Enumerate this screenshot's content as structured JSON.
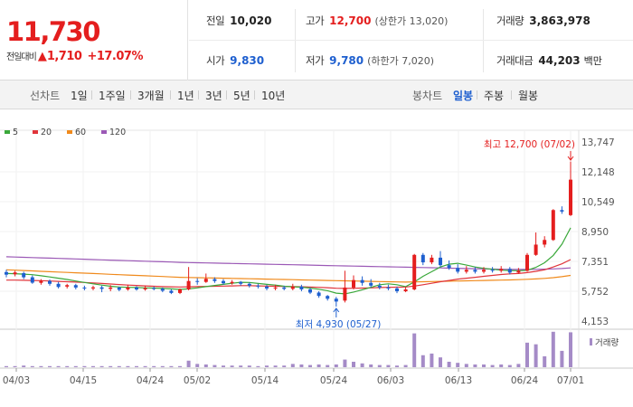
{
  "quote": {
    "price": "11,730",
    "change_label": "전일대비",
    "change_arrow": "▲",
    "change_amount": "1,710",
    "change_pct": "+17.07%",
    "prev_close": {
      "label": "전일",
      "value": "10,020"
    },
    "high": {
      "label": "고가",
      "value": "12,700",
      "note": "(상한가 13,020)"
    },
    "volume": {
      "label": "거래량",
      "value": "3,863,978"
    },
    "open": {
      "label": "시가",
      "value": "9,830"
    },
    "low": {
      "label": "저가",
      "value": "9,780",
      "note": "(하한가 7,020)"
    },
    "trade_value": {
      "label": "거래대금",
      "value": "44,203",
      "unit": "백만"
    }
  },
  "tabs": {
    "line_label": "선차트",
    "line_tabs": [
      "1일",
      "1주일",
      "3개월",
      "1년",
      "3년",
      "5년",
      "10년"
    ],
    "candle_label": "봉차트",
    "candle_tabs": [
      "일봉",
      "주봉",
      "월봉"
    ],
    "active_candle": "일봉"
  },
  "colors": {
    "up": "#e41e1e",
    "down": "#1e5fcf",
    "accent": "#1e5fcf"
  },
  "chart_data": {
    "type": "candlestick",
    "legend": [
      {
        "name": "5",
        "color": "#3aa83a"
      },
      {
        "name": "20",
        "color": "#e0343a"
      },
      {
        "name": "60",
        "color": "#f08a1c"
      },
      {
        "name": "120",
        "color": "#9b59b6"
      }
    ],
    "y_ticks": [
      "13,747",
      "12,148",
      "10,549",
      "8,950",
      "7,351",
      "5,752",
      "4,153"
    ],
    "ylim": [
      4153,
      13747
    ],
    "x_ticks": [
      "04/03",
      "04/15",
      "04/24",
      "05/02",
      "05/14",
      "05/24",
      "06/03",
      "06/13",
      "06/24",
      "07/01"
    ],
    "high_annotation": "최고 12,700 (07/02)",
    "low_annotation": "최저 4,930 (05/27)",
    "volume_label": "거래량",
    "candles": [
      {
        "o": 6780,
        "c": 6640,
        "h": 6900,
        "l": 6500
      },
      {
        "o": 6660,
        "c": 6760,
        "h": 6850,
        "l": 6550
      },
      {
        "o": 6720,
        "c": 6500,
        "h": 6800,
        "l": 6400
      },
      {
        "o": 6500,
        "c": 6210,
        "h": 6600,
        "l": 6150
      },
      {
        "o": 6200,
        "c": 6310,
        "h": 6400,
        "l": 6100
      },
      {
        "o": 6300,
        "c": 6150,
        "h": 6380,
        "l": 6050
      },
      {
        "o": 6150,
        "c": 5980,
        "h": 6250,
        "l": 5900
      },
      {
        "o": 6000,
        "c": 6080,
        "h": 6150,
        "l": 5900
      },
      {
        "o": 6080,
        "c": 5950,
        "h": 6150,
        "l": 5850
      },
      {
        "o": 5950,
        "c": 5900,
        "h": 6050,
        "l": 5800
      },
      {
        "o": 5900,
        "c": 5960,
        "h": 6050,
        "l": 5800
      },
      {
        "o": 5960,
        "c": 5880,
        "h": 6050,
        "l": 5700
      },
      {
        "o": 5880,
        "c": 5950,
        "h": 6080,
        "l": 5750
      },
      {
        "o": 5950,
        "c": 5830,
        "h": 6000,
        "l": 5750
      },
      {
        "o": 5850,
        "c": 5950,
        "h": 6100,
        "l": 5780
      },
      {
        "o": 5950,
        "c": 5850,
        "h": 6020,
        "l": 5780
      },
      {
        "o": 5850,
        "c": 5920,
        "h": 6050,
        "l": 5780
      },
      {
        "o": 5920,
        "c": 5880,
        "h": 6000,
        "l": 5800
      },
      {
        "o": 5880,
        "c": 5780,
        "h": 5950,
        "l": 5700
      },
      {
        "o": 5780,
        "c": 5660,
        "h": 5860,
        "l": 5600
      },
      {
        "o": 5660,
        "c": 5850,
        "h": 5900,
        "l": 5600
      },
      {
        "o": 5850,
        "c": 6300,
        "h": 7050,
        "l": 5800
      },
      {
        "o": 6300,
        "c": 6250,
        "h": 6450,
        "l": 6100
      },
      {
        "o": 6250,
        "c": 6420,
        "h": 6700,
        "l": 6200
      },
      {
        "o": 6400,
        "c": 6300,
        "h": 6500,
        "l": 6200
      },
      {
        "o": 6300,
        "c": 6180,
        "h": 6400,
        "l": 6100
      },
      {
        "o": 6180,
        "c": 6250,
        "h": 6350,
        "l": 6100
      },
      {
        "o": 6250,
        "c": 6150,
        "h": 6300,
        "l": 6050
      },
      {
        "o": 6150,
        "c": 6050,
        "h": 6220,
        "l": 5950
      },
      {
        "o": 6050,
        "c": 6000,
        "h": 6150,
        "l": 5900
      },
      {
        "o": 6000,
        "c": 5900,
        "h": 6100,
        "l": 5800
      },
      {
        "o": 5900,
        "c": 5950,
        "h": 6100,
        "l": 5800
      },
      {
        "o": 5950,
        "c": 5880,
        "h": 6050,
        "l": 5800
      },
      {
        "o": 5880,
        "c": 6000,
        "h": 6150,
        "l": 5800
      },
      {
        "o": 6000,
        "c": 5850,
        "h": 6100,
        "l": 5750
      },
      {
        "o": 5850,
        "c": 5680,
        "h": 5950,
        "l": 5600
      },
      {
        "o": 5680,
        "c": 5500,
        "h": 5750,
        "l": 5400
      },
      {
        "o": 5500,
        "c": 5350,
        "h": 5550,
        "l": 5250
      },
      {
        "o": 5350,
        "c": 5200,
        "h": 5450,
        "l": 4930
      },
      {
        "o": 5250,
        "c": 5950,
        "h": 6850,
        "l": 5150
      },
      {
        "o": 5950,
        "c": 6350,
        "h": 6600,
        "l": 5850
      },
      {
        "o": 6350,
        "c": 6200,
        "h": 6550,
        "l": 6050
      },
      {
        "o": 6200,
        "c": 6050,
        "h": 6400,
        "l": 5950
      },
      {
        "o": 6050,
        "c": 5950,
        "h": 6200,
        "l": 5850
      },
      {
        "o": 5950,
        "c": 5900,
        "h": 6100,
        "l": 5800
      },
      {
        "o": 5900,
        "c": 5750,
        "h": 6000,
        "l": 5650
      },
      {
        "o": 5750,
        "c": 5850,
        "h": 6000,
        "l": 5700
      },
      {
        "o": 5850,
        "c": 7700,
        "h": 7750,
        "l": 5800
      },
      {
        "o": 7700,
        "c": 7300,
        "h": 7800,
        "l": 7150
      },
      {
        "o": 7300,
        "c": 7550,
        "h": 7700,
        "l": 7200
      },
      {
        "o": 7550,
        "c": 7150,
        "h": 7900,
        "l": 7050
      },
      {
        "o": 7150,
        "c": 7000,
        "h": 7400,
        "l": 6900
      },
      {
        "o": 7000,
        "c": 6800,
        "h": 7200,
        "l": 6700
      },
      {
        "o": 6800,
        "c": 6900,
        "h": 7100,
        "l": 6700
      },
      {
        "o": 6900,
        "c": 6800,
        "h": 7050,
        "l": 6700
      },
      {
        "o": 6800,
        "c": 6900,
        "h": 7050,
        "l": 6700
      },
      {
        "o": 6900,
        "c": 6850,
        "h": 7050,
        "l": 6750
      },
      {
        "o": 6850,
        "c": 6950,
        "h": 7100,
        "l": 6750
      },
      {
        "o": 6950,
        "c": 6750,
        "h": 7050,
        "l": 6650
      },
      {
        "o": 6750,
        "c": 6850,
        "h": 7000,
        "l": 6700
      },
      {
        "o": 6850,
        "c": 7700,
        "h": 7800,
        "l": 6800
      },
      {
        "o": 7700,
        "c": 8250,
        "h": 8900,
        "l": 7650
      },
      {
        "o": 8250,
        "c": 8500,
        "h": 8700,
        "l": 8100
      },
      {
        "o": 8500,
        "c": 10100,
        "h": 10150,
        "l": 8450
      },
      {
        "o": 10100,
        "c": 10020,
        "h": 10300,
        "l": 9900
      },
      {
        "o": 9830,
        "c": 11730,
        "h": 12700,
        "l": 9780
      }
    ],
    "volumes": [
      0.02,
      0.02,
      0.03,
      0.02,
      0.02,
      0.02,
      0.02,
      0.02,
      0.02,
      0.02,
      0.02,
      0.02,
      0.02,
      0.02,
      0.02,
      0.02,
      0.02,
      0.02,
      0.02,
      0.02,
      0.02,
      0.12,
      0.06,
      0.05,
      0.04,
      0.03,
      0.03,
      0.03,
      0.03,
      0.02,
      0.03,
      0.03,
      0.03,
      0.06,
      0.05,
      0.04,
      0.05,
      0.04,
      0.05,
      0.14,
      0.1,
      0.07,
      0.05,
      0.04,
      0.04,
      0.03,
      0.04,
      0.62,
      0.22,
      0.25,
      0.18,
      0.1,
      0.08,
      0.06,
      0.05,
      0.05,
      0.04,
      0.05,
      0.04,
      0.06,
      0.45,
      0.42,
      0.2,
      0.65,
      0.3,
      0.64
    ],
    "ma5": [
      6700,
      6690,
      6670,
      6640,
      6580,
      6520,
      6450,
      6380,
      6300,
      6220,
      6150,
      6080,
      6020,
      5980,
      5960,
      5950,
      5930,
      5920,
      5900,
      5880,
      5850,
      5880,
      5930,
      6000,
      6060,
      6120,
      6180,
      6230,
      6220,
      6170,
      6120,
      6080,
      6020,
      5990,
      5970,
      5920,
      5860,
      5780,
      5650,
      5610,
      5710,
      5830,
      5960,
      6100,
      6150,
      6100,
      6000,
      6250,
      6550,
      6800,
      7050,
      7200,
      7250,
      7150,
      7050,
      6980,
      6930,
      6880,
      6860,
      6850,
      6870,
      7030,
      7280,
      7670,
      8270,
      9150
    ],
    "ma20": [
      6350,
      6350,
      6340,
      6330,
      6320,
      6300,
      6280,
      6260,
      6240,
      6220,
      6200,
      6170,
      6140,
      6110,
      6080,
      6060,
      6040,
      6020,
      6000,
      5990,
      5980,
      5990,
      6000,
      6010,
      6020,
      6030,
      6040,
      6050,
      6050,
      6040,
      6030,
      6020,
      6010,
      6000,
      5990,
      5980,
      5960,
      5940,
      5910,
      5900,
      5910,
      5920,
      5930,
      5950,
      5960,
      5970,
      5980,
      6030,
      6100,
      6180,
      6260,
      6330,
      6400,
      6450,
      6500,
      6550,
      6600,
      6650,
      6680,
      6700,
      6750,
      6820,
      6900,
      7050,
      7220,
      7450
    ],
    "ma60": [
      6900,
      6880,
      6860,
      6840,
      6820,
      6800,
      6780,
      6760,
      6740,
      6720,
      6700,
      6680,
      6660,
      6640,
      6620,
      6600,
      6580,
      6560,
      6540,
      6520,
      6500,
      6490,
      6480,
      6470,
      6460,
      6450,
      6440,
      6430,
      6420,
      6410,
      6400,
      6390,
      6380,
      6370,
      6360,
      6350,
      6340,
      6330,
      6320,
      6310,
      6300,
      6290,
      6280,
      6270,
      6260,
      6250,
      6240,
      6250,
      6260,
      6270,
      6280,
      6290,
      6300,
      6310,
      6320,
      6330,
      6340,
      6350,
      6360,
      6370,
      6390,
      6410,
      6440,
      6480,
      6530,
      6600
    ],
    "ma120": [
      7600,
      7585,
      7570,
      7555,
      7540,
      7525,
      7510,
      7495,
      7480,
      7465,
      7450,
      7435,
      7420,
      7405,
      7390,
      7375,
      7360,
      7345,
      7330,
      7315,
      7300,
      7290,
      7280,
      7270,
      7260,
      7250,
      7240,
      7230,
      7220,
      7210,
      7200,
      7190,
      7180,
      7170,
      7160,
      7150,
      7140,
      7130,
      7120,
      7110,
      7100,
      7090,
      7080,
      7070,
      7060,
      7050,
      7040,
      7030,
      7020,
      7010,
      7000,
      6990,
      6980,
      6970,
      6960,
      6950,
      6940,
      6930,
      6925,
      6920,
      6920,
      6925,
      6935,
      6950,
      6970,
      7000
    ]
  }
}
